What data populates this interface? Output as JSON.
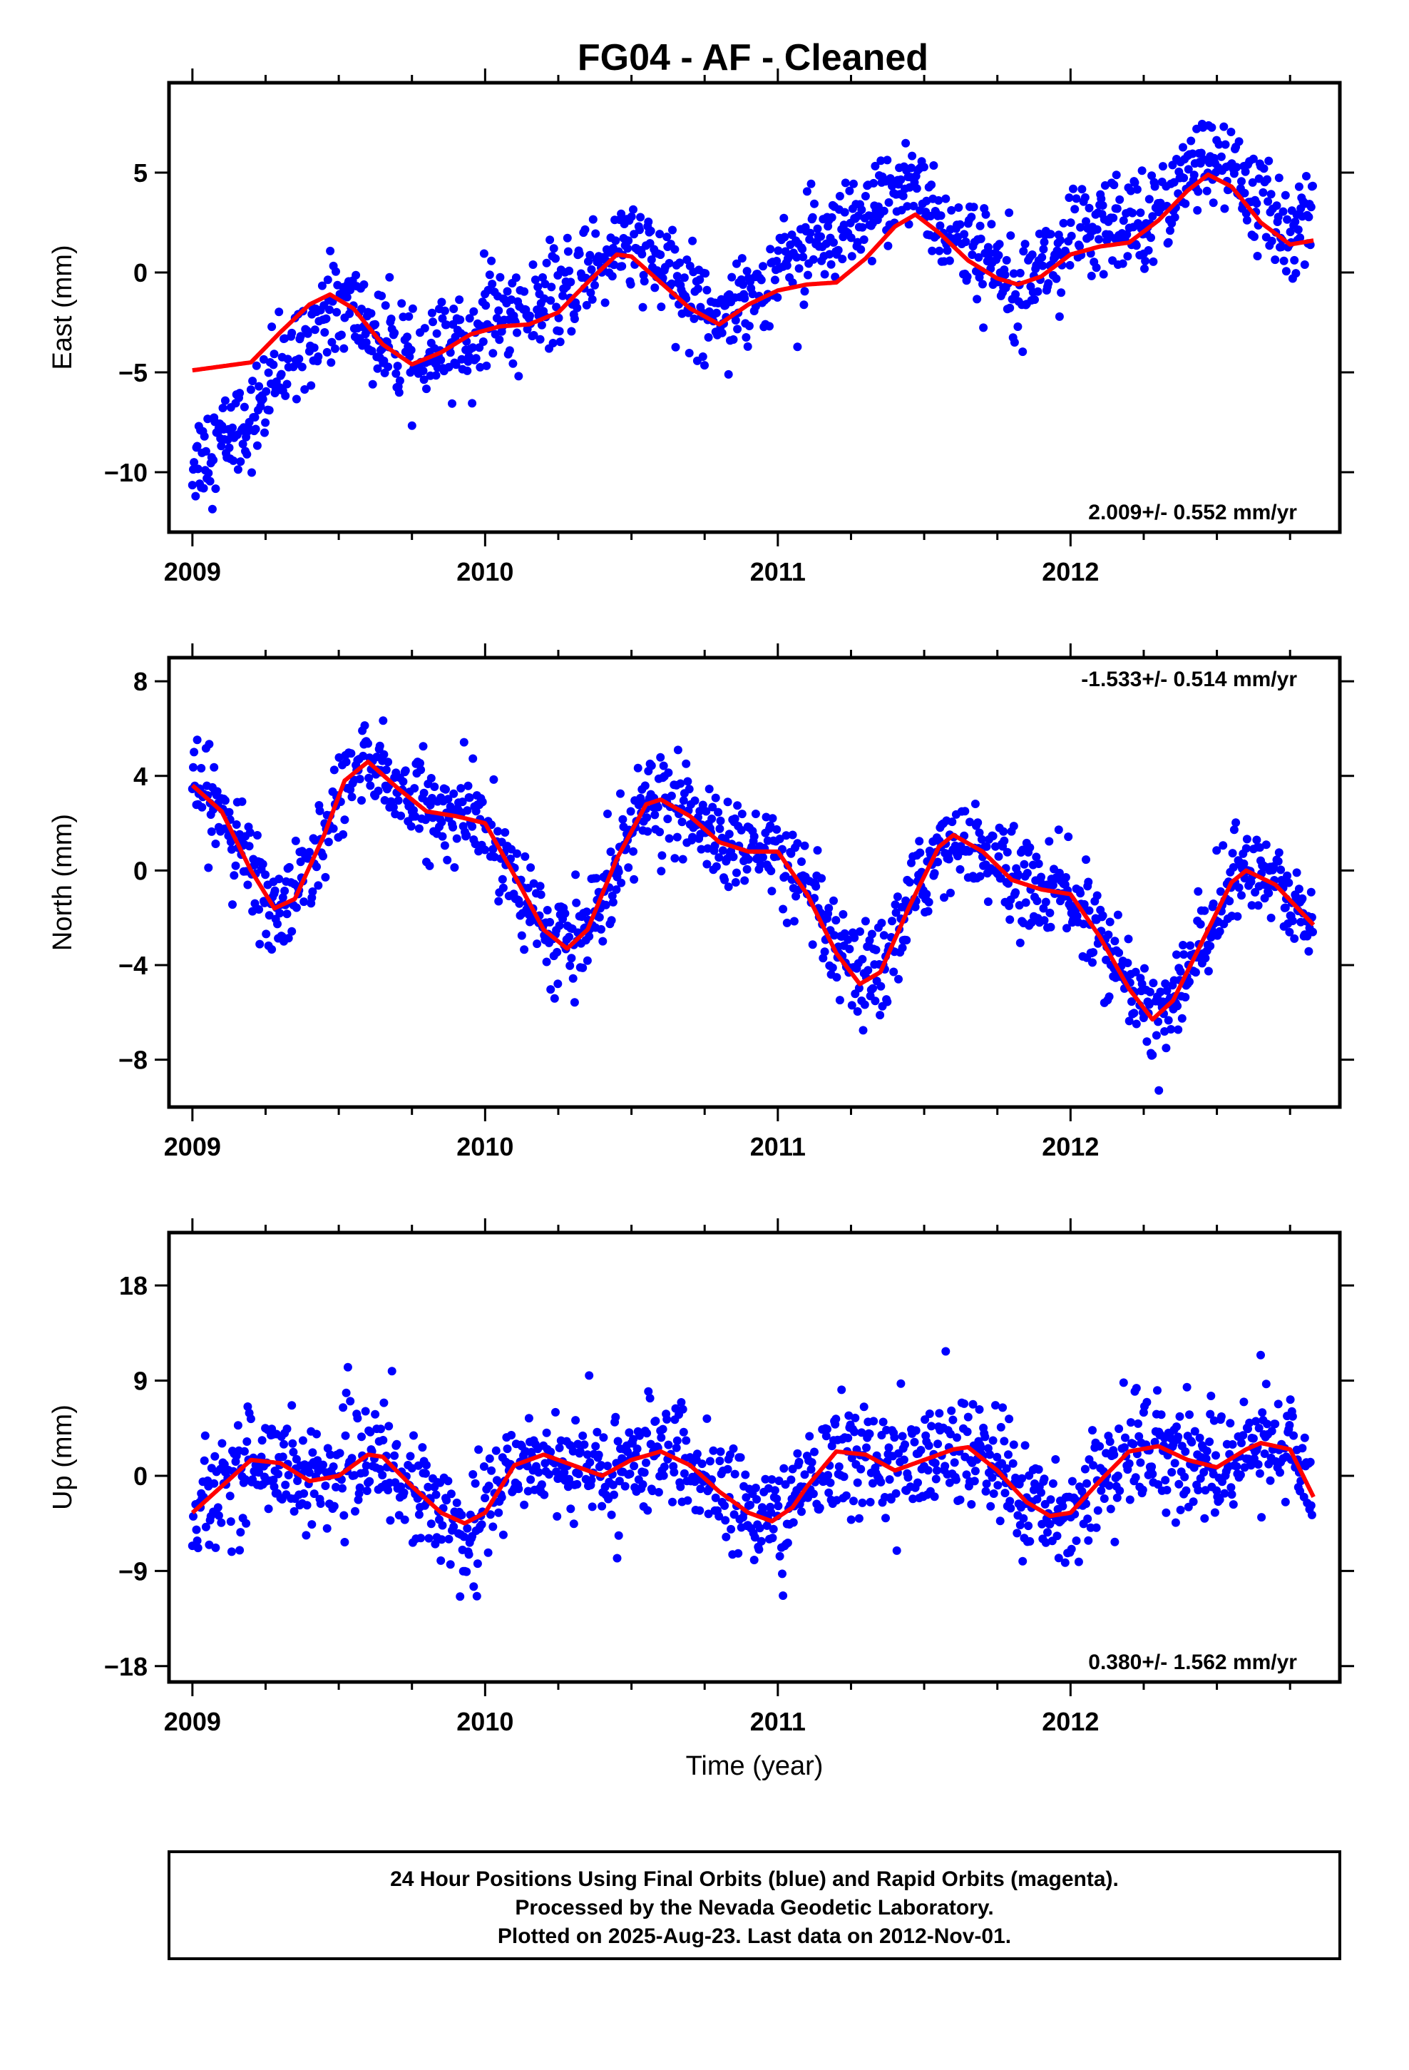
{
  "title": "FG04  - AF - Cleaned",
  "footer": {
    "line1": "24 Hour Positions Using Final Orbits (blue) and Rapid Orbits (magenta).",
    "line2": "Processed by the Nevada Geodetic Laboratory.",
    "line3": "Plotted on 2025-Aug-23. Last data on 2012-Nov-01."
  },
  "colors": {
    "points": "#0000ff",
    "fit": "#ff0000",
    "frame": "#000000"
  },
  "chart_data": [
    {
      "type": "scatter",
      "ylabel": "East (mm)",
      "xlabel": "",
      "xlim": [
        2008.92,
        2012.92
      ],
      "ylim": [
        -13,
        9.5
      ],
      "x_ticks": [
        2009,
        2010,
        2011,
        2012
      ],
      "x_tick_labels": [
        "2009",
        "2010",
        "2011",
        "2012"
      ],
      "y_ticks": [
        -10,
        -5,
        0,
        5
      ],
      "y_tick_labels": [
        "−10",
        "−5",
        "0",
        "5"
      ],
      "rate_label": "2.009+/- 0.552 mm/yr",
      "rate_position": "bottom-right",
      "trend": {
        "slope": 2.0,
        "intercept": -5.8
      },
      "annual": {
        "cos": -1.5,
        "sin": 1.2
      },
      "semiannual": {
        "cos": -0.6,
        "sin": 0.4
      },
      "noise": 2.0,
      "fit_x": [
        2009.0,
        2009.1,
        2009.2,
        2009.3,
        2009.4,
        2009.47,
        2009.55,
        2009.65,
        2009.75,
        2009.85,
        2009.95,
        2010.05,
        2010.15,
        2010.25,
        2010.35,
        2010.45,
        2010.5,
        2010.6,
        2010.7,
        2010.8,
        2010.9,
        2011.0,
        2011.1,
        2011.2,
        2011.3,
        2011.4,
        2011.47,
        2011.55,
        2011.65,
        2011.75,
        2011.82,
        2011.9,
        2012.0,
        2012.1,
        2012.2,
        2012.3,
        2012.4,
        2012.47,
        2012.55,
        2012.65,
        2012.75,
        2012.83
      ],
      "fit_y": [
        -4.9,
        -4.7,
        -4.5,
        -3.0,
        -1.6,
        -1.1,
        -1.8,
        -3.6,
        -4.6,
        -4.0,
        -3.1,
        -2.7,
        -2.6,
        -2.0,
        -0.5,
        0.9,
        0.8,
        -0.5,
        -1.8,
        -2.6,
        -1.6,
        -0.9,
        -0.6,
        -0.5,
        0.7,
        2.3,
        2.9,
        2.0,
        0.6,
        -0.3,
        -0.6,
        -0.2,
        0.9,
        1.3,
        1.5,
        2.6,
        4.1,
        4.9,
        4.3,
        2.5,
        1.4,
        1.6
      ]
    },
    {
      "type": "scatter",
      "ylabel": "North (mm)",
      "xlabel": "",
      "xlim": [
        2008.92,
        2012.92
      ],
      "ylim": [
        -10,
        9
      ],
      "x_ticks": [
        2009,
        2010,
        2011,
        2012
      ],
      "x_tick_labels": [
        "2009",
        "2010",
        "2011",
        "2012"
      ],
      "y_ticks": [
        -8,
        -4,
        0,
        4,
        8
      ],
      "y_tick_labels": [
        "−8",
        "−4",
        "0",
        "4",
        "8"
      ],
      "rate_label": "-1.533+/- 0.514 mm/yr",
      "rate_position": "top-right",
      "trend": {
        "slope": -1.5,
        "intercept": 2.2
      },
      "annual": {
        "cos": 2.0,
        "sin": 1.8
      },
      "semiannual": {
        "cos": 0.5,
        "sin": 0.3
      },
      "noise": 1.6,
      "fit_x": [
        2009.0,
        2009.1,
        2009.2,
        2009.28,
        2009.35,
        2009.45,
        2009.52,
        2009.6,
        2009.7,
        2009.8,
        2009.9,
        2010.0,
        2010.1,
        2010.2,
        2010.28,
        2010.35,
        2010.45,
        2010.55,
        2010.6,
        2010.7,
        2010.8,
        2010.9,
        2011.0,
        2011.1,
        2011.2,
        2011.28,
        2011.35,
        2011.45,
        2011.55,
        2011.6,
        2011.7,
        2011.8,
        2011.9,
        2012.0,
        2012.1,
        2012.2,
        2012.28,
        2012.35,
        2012.45,
        2012.55,
        2012.6,
        2012.7,
        2012.83
      ],
      "fit_y": [
        3.6,
        2.5,
        0.0,
        -1.6,
        -1.2,
        1.5,
        3.8,
        4.6,
        3.5,
        2.5,
        2.3,
        2.0,
        -0.2,
        -2.5,
        -3.3,
        -2.5,
        0.5,
        2.8,
        3.0,
        2.3,
        1.2,
        0.8,
        0.8,
        -1.0,
        -3.5,
        -4.8,
        -4.3,
        -1.5,
        1.0,
        1.5,
        0.8,
        -0.4,
        -0.8,
        -1.0,
        -2.8,
        -5.0,
        -6.3,
        -5.5,
        -3.0,
        -0.5,
        0.0,
        -0.6,
        -2.3
      ]
    },
    {
      "type": "scatter",
      "ylabel": "Up (mm)",
      "xlabel": "Time (year)",
      "xlim": [
        2008.92,
        2012.92
      ],
      "ylim": [
        -19.5,
        23
      ],
      "x_ticks": [
        2009,
        2010,
        2011,
        2012
      ],
      "x_tick_labels": [
        "2009",
        "2010",
        "2011",
        "2012"
      ],
      "y_ticks": [
        -18,
        -9,
        0,
        9,
        18
      ],
      "y_tick_labels": [
        "−18",
        "−9",
        "0",
        "9",
        "18"
      ],
      "rate_label": "0.380+/- 1.562 mm/yr",
      "rate_position": "bottom-right",
      "trend": {
        "slope": 0.4,
        "intercept": -1.5
      },
      "annual": {
        "cos": -2.5,
        "sin": 0.8
      },
      "semiannual": {
        "cos": -1.8,
        "sin": 1.2
      },
      "noise": 4.2,
      "fit_x": [
        2009.0,
        2009.1,
        2009.2,
        2009.3,
        2009.4,
        2009.5,
        2009.6,
        2009.65,
        2009.75,
        2009.85,
        2009.93,
        2010.0,
        2010.1,
        2010.2,
        2010.3,
        2010.4,
        2010.5,
        2010.6,
        2010.7,
        2010.8,
        2010.9,
        2010.98,
        2011.05,
        2011.1,
        2011.2,
        2011.3,
        2011.4,
        2011.5,
        2011.6,
        2011.65,
        2011.75,
        2011.85,
        2011.93,
        2012.0,
        2012.1,
        2012.2,
        2012.3,
        2012.4,
        2012.5,
        2012.6,
        2012.65,
        2012.75,
        2012.83
      ],
      "fit_y": [
        -3.5,
        -1.0,
        1.5,
        1.2,
        -0.5,
        0.0,
        2.0,
        1.8,
        -1.0,
        -3.5,
        -4.5,
        -3.5,
        1.0,
        2.0,
        1.0,
        0.0,
        1.5,
        2.3,
        1.0,
        -1.5,
        -3.5,
        -4.3,
        -3.0,
        -1.0,
        2.3,
        2.0,
        0.5,
        1.5,
        2.5,
        2.7,
        0.5,
        -2.5,
        -3.8,
        -3.5,
        -0.5,
        2.3,
        2.8,
        1.5,
        0.8,
        2.5,
        3.1,
        2.5,
        -2.0
      ]
    }
  ]
}
